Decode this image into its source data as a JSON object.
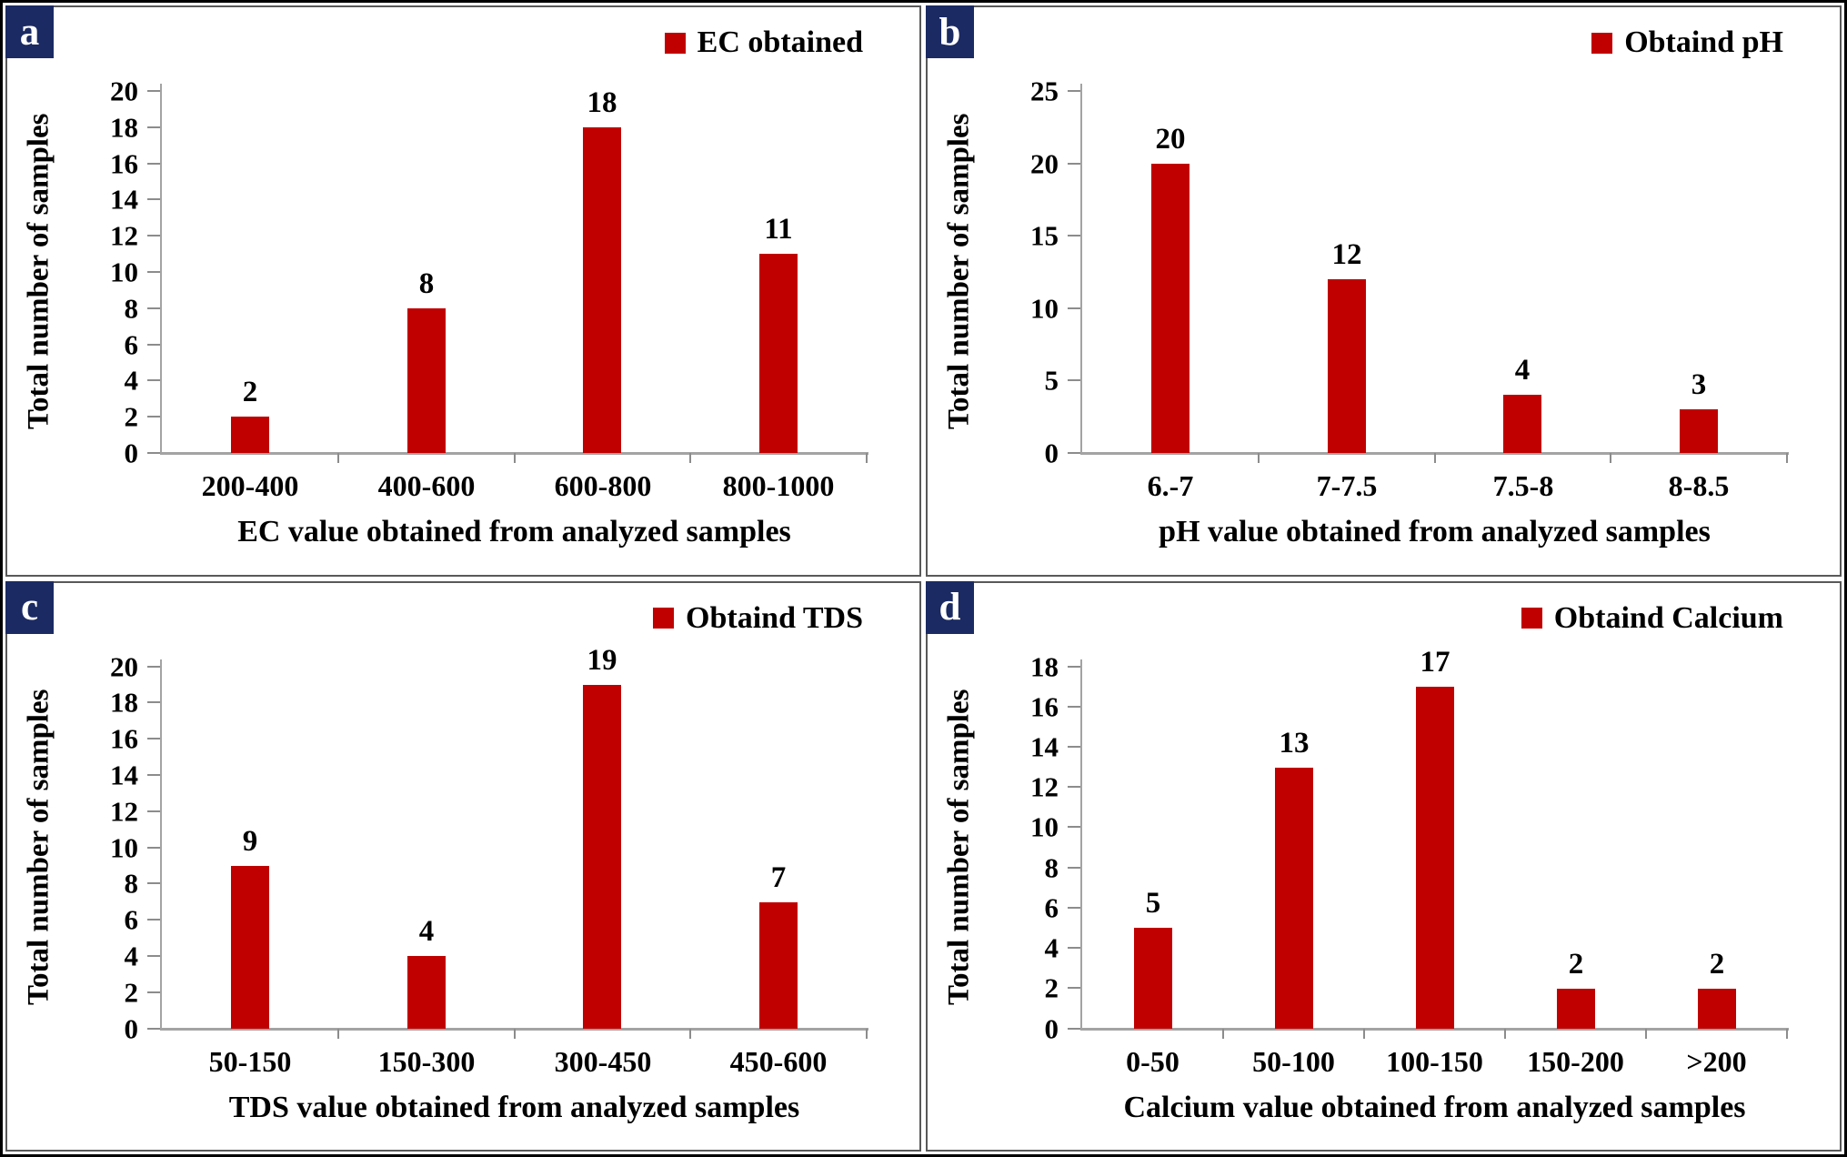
{
  "colors": {
    "bar": "#C00000",
    "corner_box": "#1B2A63",
    "corner_text": "#FFFFFF",
    "axis": "#A3A3A3",
    "tick": "#8C8C8C",
    "panel_border": "#595959",
    "outer_border": "#000000",
    "text": "#000000"
  },
  "chart_data": [
    {
      "type": "bar",
      "panel_label": "a",
      "legend": "EC obtained",
      "categories": [
        "200-400",
        "400-600",
        "600-800",
        "800-1000"
      ],
      "values": [
        2,
        8,
        18,
        11
      ],
      "xlabel": "EC value obtained from analyzed samples",
      "ylabel": "Total number of samples",
      "ylim": [
        0,
        20
      ],
      "ytick_step": 2,
      "legend_position": "top-right",
      "grid": false
    },
    {
      "type": "bar",
      "panel_label": "b",
      "legend": "Obtaind pH",
      "categories": [
        "6.-7",
        "7-7.5",
        "7.5-8",
        "8-8.5"
      ],
      "values": [
        20,
        12,
        4,
        3
      ],
      "xlabel": "pH value obtained from analyzed samples",
      "ylabel": "Total number of samples",
      "ylim": [
        0,
        25
      ],
      "ytick_step": 5,
      "legend_position": "top-right",
      "grid": false
    },
    {
      "type": "bar",
      "panel_label": "c",
      "legend": "Obtaind TDS",
      "categories": [
        "50-150",
        "150-300",
        "300-450",
        "450-600"
      ],
      "values": [
        9,
        4,
        19,
        7
      ],
      "xlabel": "TDS value obtained from analyzed samples",
      "ylabel": "Total number of samples",
      "ylim": [
        0,
        20
      ],
      "ytick_step": 2,
      "legend_position": "top-right",
      "grid": false
    },
    {
      "type": "bar",
      "panel_label": "d",
      "legend": "Obtaind Calcium",
      "categories": [
        "0-50",
        "50-100",
        "100-150",
        "150-200",
        ">200"
      ],
      "values": [
        5,
        13,
        17,
        2,
        2
      ],
      "xlabel": "Calcium value obtained from analyzed samples",
      "ylabel": "Total number of samples",
      "ylim": [
        0,
        18
      ],
      "ytick_step": 2,
      "legend_position": "top-right",
      "grid": false
    }
  ]
}
